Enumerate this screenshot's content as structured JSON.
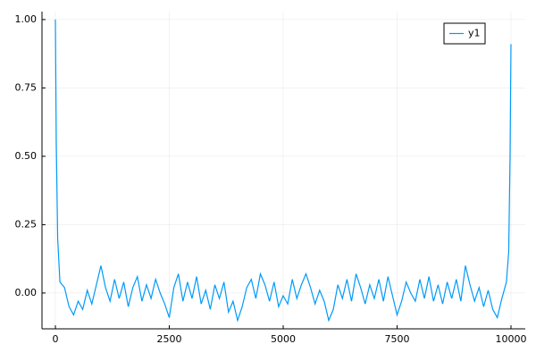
{
  "chart_data": {
    "type": "line",
    "x": [
      0,
      20,
      50,
      100,
      200,
      300,
      400,
      500,
      600,
      700,
      800,
      900,
      1000,
      1100,
      1200,
      1300,
      1400,
      1500,
      1600,
      1700,
      1800,
      1900,
      2000,
      2100,
      2200,
      2300,
      2400,
      2500,
      2600,
      2700,
      2800,
      2900,
      3000,
      3100,
      3200,
      3300,
      3400,
      3500,
      3600,
      3700,
      3800,
      3900,
      4000,
      4100,
      4200,
      4300,
      4400,
      4500,
      4600,
      4700,
      4800,
      4900,
      5000,
      5100,
      5200,
      5300,
      5400,
      5500,
      5600,
      5700,
      5800,
      5900,
      6000,
      6100,
      6200,
      6300,
      6400,
      6500,
      6600,
      6700,
      6800,
      6900,
      7000,
      7100,
      7200,
      7300,
      7400,
      7500,
      7600,
      7700,
      7800,
      7900,
      8000,
      8100,
      8200,
      8300,
      8400,
      8500,
      8600,
      8700,
      8800,
      8900,
      9000,
      9100,
      9200,
      9300,
      9400,
      9500,
      9600,
      9700,
      9800,
      9900,
      9950,
      9980,
      10000
    ],
    "series": [
      {
        "name": "y1",
        "color": "#009af9",
        "values": [
          1.0,
          0.55,
          0.2,
          0.04,
          0.02,
          -0.05,
          -0.08,
          -0.03,
          -0.06,
          0.01,
          -0.04,
          0.03,
          0.1,
          0.02,
          -0.03,
          0.05,
          -0.02,
          0.04,
          -0.05,
          0.02,
          0.06,
          -0.03,
          0.03,
          -0.02,
          0.05,
          0.0,
          -0.04,
          -0.09,
          0.02,
          0.07,
          -0.03,
          0.04,
          -0.02,
          0.06,
          -0.04,
          0.01,
          -0.06,
          0.03,
          -0.02,
          0.04,
          -0.07,
          -0.03,
          -0.1,
          -0.05,
          0.02,
          0.05,
          -0.02,
          0.07,
          0.03,
          -0.03,
          0.04,
          -0.05,
          -0.01,
          -0.04,
          0.05,
          -0.02,
          0.03,
          0.07,
          0.02,
          -0.04,
          0.01,
          -0.03,
          -0.1,
          -0.06,
          0.03,
          -0.02,
          0.05,
          -0.03,
          0.07,
          0.02,
          -0.04,
          0.03,
          -0.02,
          0.05,
          -0.03,
          0.06,
          -0.01,
          -0.08,
          -0.03,
          0.04,
          0.0,
          -0.03,
          0.05,
          -0.02,
          0.06,
          -0.03,
          0.03,
          -0.04,
          0.04,
          -0.02,
          0.05,
          -0.03,
          0.1,
          0.03,
          -0.03,
          0.02,
          -0.05,
          0.01,
          -0.06,
          -0.09,
          -0.02,
          0.04,
          0.15,
          0.5,
          0.91
        ]
      }
    ],
    "xlim": [
      -294,
      10314
    ],
    "ylim": [
      -0.131,
      1.029
    ],
    "xticks": [
      0,
      2500,
      5000,
      7500,
      10000
    ],
    "yticks": [
      {
        "value": 0,
        "label": "0.00"
      },
      {
        "value": 0.25,
        "label": "0.25"
      },
      {
        "value": 0.5,
        "label": "0.50"
      },
      {
        "value": 0.75,
        "label": "0.75"
      },
      {
        "value": 1,
        "label": "1.00"
      }
    ],
    "grid": true,
    "legend": "top-right"
  }
}
